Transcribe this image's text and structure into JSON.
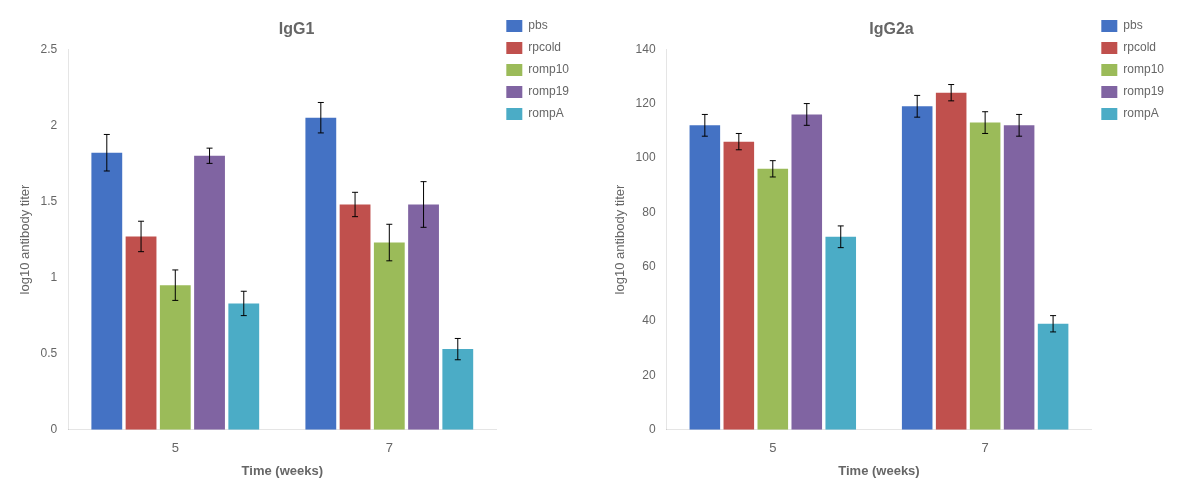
{
  "chart_data": [
    {
      "type": "bar",
      "title": "IgG1",
      "xlabel": "Time (weeks)",
      "ylabel": "log10 antibody titer",
      "categories": [
        "5",
        "7"
      ],
      "series": [
        {
          "name": "pbs",
          "color": "#4472C4",
          "values": [
            1.82,
            2.05
          ],
          "errors": [
            0.12,
            0.1
          ]
        },
        {
          "name": "rpcold",
          "color": "#C0504D",
          "values": [
            1.27,
            1.48
          ],
          "errors": [
            0.1,
            0.08
          ]
        },
        {
          "name": "romp10",
          "color": "#9BBB59",
          "values": [
            0.95,
            1.23
          ],
          "errors": [
            0.1,
            0.12
          ]
        },
        {
          "name": "romp19",
          "color": "#8064A2",
          "values": [
            1.8,
            1.48
          ],
          "errors": [
            0.05,
            0.15
          ]
        },
        {
          "name": "rompA",
          "color": "#4BACC6",
          "values": [
            0.83,
            0.53
          ],
          "errors": [
            0.08,
            0.07
          ]
        }
      ],
      "ylim": [
        0,
        2.5
      ],
      "yticks": [
        0,
        0.5,
        1,
        1.5,
        2,
        2.5
      ],
      "grid": false,
      "legend": "right"
    },
    {
      "type": "bar",
      "title": "IgG2a",
      "xlabel": "Time (weeks)",
      "ylabel": "log10 antibody titer",
      "categories": [
        "5",
        "7"
      ],
      "series": [
        {
          "name": "pbs",
          "color": "#4472C4",
          "values": [
            112,
            119
          ],
          "errors": [
            4,
            4
          ]
        },
        {
          "name": "rpcold",
          "color": "#C0504D",
          "values": [
            106,
            124
          ],
          "errors": [
            3,
            3
          ]
        },
        {
          "name": "romp10",
          "color": "#9BBB59",
          "values": [
            96,
            113
          ],
          "errors": [
            3,
            4
          ]
        },
        {
          "name": "romp19",
          "color": "#8064A2",
          "values": [
            116,
            112
          ],
          "errors": [
            4,
            4
          ]
        },
        {
          "name": "rompA",
          "color": "#4BACC6",
          "values": [
            71,
            39
          ],
          "errors": [
            4,
            3
          ]
        }
      ],
      "ylim": [
        0,
        140
      ],
      "yticks": [
        0,
        20,
        40,
        60,
        80,
        100,
        120,
        140
      ],
      "grid": false,
      "legend": "right"
    }
  ]
}
